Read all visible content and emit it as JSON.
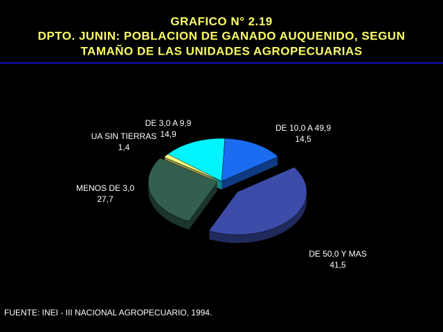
{
  "chart_data": {
    "type": "pie",
    "title": [
      "GRAFICO N° 2.19",
      "DPTO. JUNIN: POBLACION DE GANADO AUQUENIDO, SEGUN",
      "TAMAÑO DE LAS UNIDADES AGROPECUARIAS"
    ],
    "categories": [
      "DE 10,0 A 49,9",
      "DE 3,0 A 9,9",
      "UA SIN TIERRAS",
      "MENOS DE 3,0",
      "DE 50,0 Y MAS"
    ],
    "values": [
      14.5,
      14.9,
      1.4,
      27.7,
      41.5
    ],
    "value_labels": [
      "14,5",
      "14,9",
      "1,4",
      "27,7",
      "41,5"
    ],
    "colors": [
      "#1c6cf2",
      "#00f4ff",
      "#ffff80",
      "#33604e",
      "#3c4ca8"
    ],
    "source": "FUENTE: INEI - III NACIONAL AGROPECUARIO, 1994."
  }
}
